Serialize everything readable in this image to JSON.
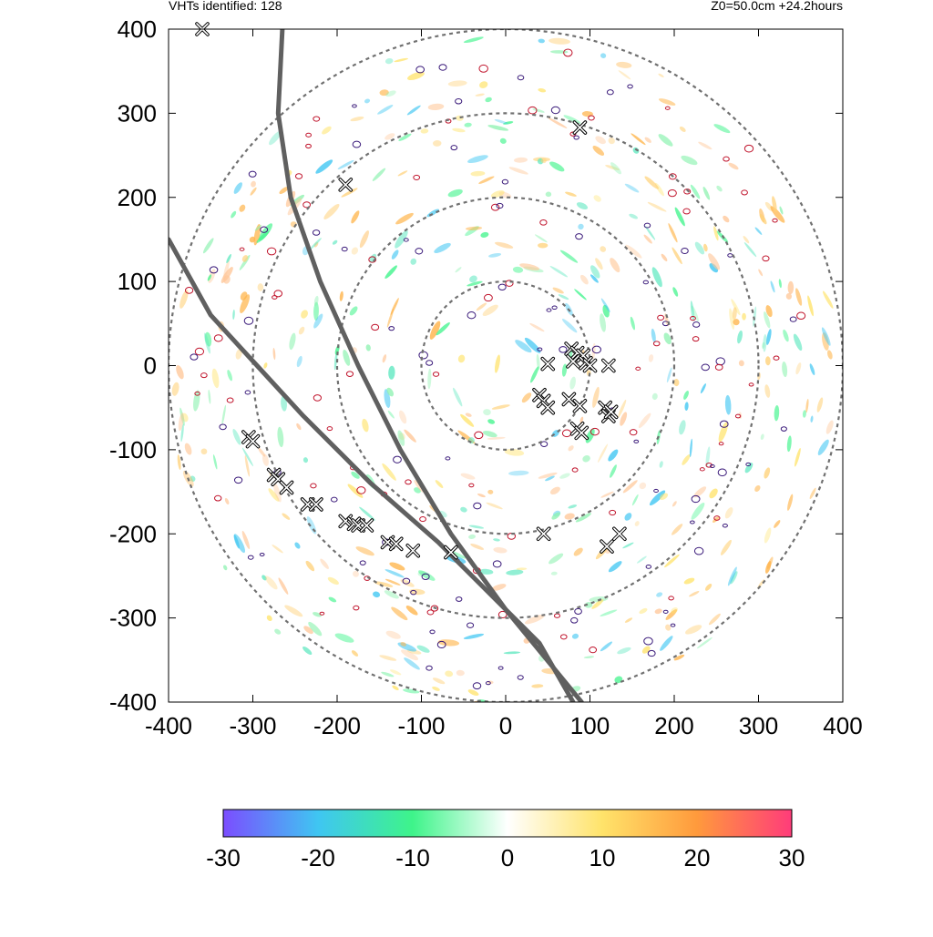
{
  "header": {
    "left_text": "VHTs identified: 128",
    "right_text": "Z0=50.0cm  +24.2hours"
  },
  "chart_data": {
    "type": "scatter",
    "title": "",
    "xlabel": "",
    "ylabel": "",
    "xlim": [
      -400,
      400
    ],
    "ylim": [
      -400,
      400
    ],
    "xticks": [
      -400,
      -300,
      -200,
      -100,
      0,
      100,
      200,
      300,
      400
    ],
    "yticks": [
      -400,
      -300,
      -200,
      -100,
      0,
      100,
      200,
      300,
      400
    ],
    "grid": false,
    "range_rings": [
      100,
      200,
      300,
      400
    ],
    "range_ring_center": [
      0,
      0
    ],
    "ring_color": "#707070",
    "track_color": "#606060",
    "vht_count": 128,
    "vht_markers": [
      [
        88,
        283
      ],
      [
        -190,
        215
      ],
      [
        -360,
        400
      ],
      [
        50,
        2
      ],
      [
        78,
        20
      ],
      [
        85,
        15
      ],
      [
        92,
        12
      ],
      [
        80,
        5
      ],
      [
        95,
        3
      ],
      [
        100,
        0
      ],
      [
        122,
        0
      ],
      [
        40,
        -35
      ],
      [
        45,
        -42
      ],
      [
        50,
        -50
      ],
      [
        75,
        -40
      ],
      [
        88,
        -48
      ],
      [
        118,
        -50
      ],
      [
        122,
        -60
      ],
      [
        125,
        -55
      ],
      [
        85,
        -75
      ],
      [
        90,
        -80
      ],
      [
        45,
        -200
      ],
      [
        120,
        -215
      ],
      [
        135,
        -200
      ],
      [
        -305,
        -85
      ],
      [
        -300,
        -90
      ],
      [
        -275,
        -130
      ],
      [
        -270,
        -135
      ],
      [
        -260,
        -145
      ],
      [
        -235,
        -165
      ],
      [
        -225,
        -165
      ],
      [
        -190,
        -185
      ],
      [
        -180,
        -188
      ],
      [
        -175,
        -190
      ],
      [
        -165,
        -190
      ],
      [
        -140,
        -210
      ],
      [
        -130,
        -212
      ],
      [
        -110,
        -220
      ],
      [
        -65,
        -222
      ]
    ],
    "tracks": [
      {
        "points": [
          [
            -265,
            400
          ],
          [
            -270,
            300
          ],
          [
            -255,
            200
          ],
          [
            -220,
            100
          ],
          [
            -175,
            0
          ],
          [
            -125,
            -100
          ],
          [
            -65,
            -200
          ],
          [
            0,
            -290
          ],
          [
            90,
            -400
          ]
        ]
      },
      {
        "points": [
          [
            -400,
            150
          ],
          [
            -350,
            60
          ],
          [
            -295,
            0
          ],
          [
            -240,
            -60
          ],
          [
            -160,
            -140
          ],
          [
            -80,
            -210
          ],
          [
            -20,
            -270
          ],
          [
            40,
            -330
          ],
          [
            80,
            -400
          ]
        ]
      }
    ],
    "colorbar": {
      "min": -30,
      "max": 30,
      "tick_labels": [
        "-30",
        "-20",
        "-10",
        "0",
        "10",
        "20",
        "30"
      ],
      "tick_values": [
        -30,
        -20,
        -10,
        0,
        10,
        20,
        30
      ],
      "colors": [
        "#7b4dff",
        "#3fc6f2",
        "#3ef48a",
        "#ffffff",
        "#ffe36a",
        "#ff9a3c",
        "#ff3c7a"
      ]
    }
  }
}
